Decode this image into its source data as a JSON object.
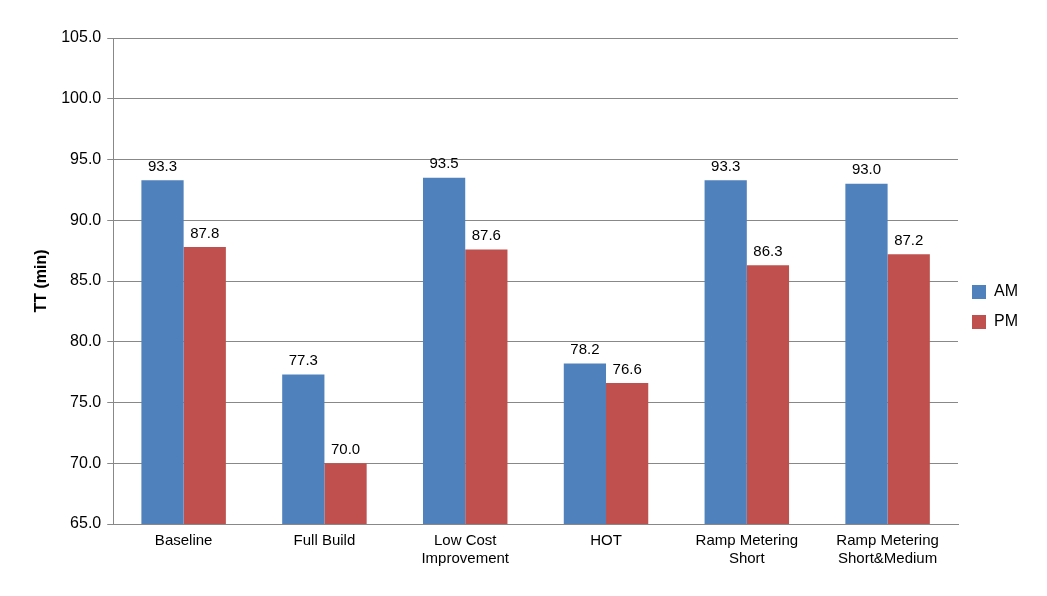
{
  "chart_data": {
    "type": "bar",
    "ylabel": "TT (min)",
    "categories": [
      "Baseline",
      "Full Build",
      "Low Cost Improvement",
      "HOT",
      "Ramp Metering Short",
      "Ramp Metering Short&Medium"
    ],
    "series": [
      {
        "name": "AM",
        "color": "#4f81bd",
        "values": [
          93.3,
          77.3,
          93.5,
          78.2,
          93.3,
          93.0
        ],
        "value_labels": [
          "93.3",
          "77.3",
          "93.5",
          "78.2",
          "93.3",
          "93.0"
        ]
      },
      {
        "name": "PM",
        "color": "#c0504d",
        "values": [
          87.8,
          70.0,
          87.6,
          76.6,
          86.3,
          87.2
        ],
        "value_labels": [
          "87.8",
          "70.0",
          "87.6",
          "76.6",
          "86.3",
          "87.2"
        ]
      }
    ],
    "ylim": [
      65,
      105
    ],
    "yticks": [
      {
        "value": 65,
        "label": "65.0"
      },
      {
        "value": 70,
        "label": "70.0"
      },
      {
        "value": 75,
        "label": "75.0"
      },
      {
        "value": 80,
        "label": "80.0"
      },
      {
        "value": 85,
        "label": "85.0"
      },
      {
        "value": 90,
        "label": "90.0"
      },
      {
        "value": 95,
        "label": "95.0"
      },
      {
        "value": 100,
        "label": "100.0"
      },
      {
        "value": 105,
        "label": "105.0"
      }
    ],
    "grid": "y",
    "legend": "right"
  }
}
